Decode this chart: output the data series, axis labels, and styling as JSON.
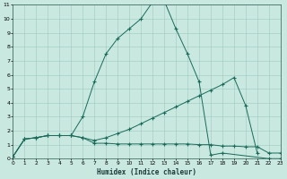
{
  "xlabel": "Humidex (Indice chaleur)",
  "bg_color": "#c8e8e0",
  "grid_color": "#a0c8c0",
  "line_color": "#1a6b5a",
  "line1_x": [
    0,
    1,
    2,
    3,
    4,
    5,
    6,
    7,
    8,
    9,
    10,
    11,
    12,
    13,
    14,
    15,
    16,
    17,
    18,
    22,
    23
  ],
  "line1_y": [
    0.15,
    1.4,
    1.5,
    1.65,
    1.65,
    1.65,
    3.0,
    5.5,
    7.5,
    8.6,
    9.3,
    10.0,
    11.2,
    11.3,
    9.3,
    7.5,
    5.5,
    0.25,
    0.4,
    0.0,
    0.0
  ],
  "line2_x": [
    0,
    1,
    2,
    3,
    4,
    5,
    6,
    7,
    8,
    9,
    10,
    11,
    12,
    13,
    14,
    15,
    16,
    17,
    18,
    19,
    20,
    21
  ],
  "line2_y": [
    0.15,
    1.4,
    1.5,
    1.65,
    1.65,
    1.65,
    1.5,
    1.3,
    1.5,
    1.8,
    2.1,
    2.5,
    2.9,
    3.3,
    3.7,
    4.1,
    4.5,
    4.9,
    5.3,
    5.8,
    3.8,
    0.4
  ],
  "line3_x": [
    0,
    1,
    2,
    3,
    4,
    5,
    6,
    7,
    8,
    9,
    10,
    11,
    12,
    13,
    14,
    15,
    16,
    17,
    18,
    19,
    20,
    21,
    22,
    23
  ],
  "line3_y": [
    0.15,
    1.4,
    1.5,
    1.65,
    1.65,
    1.65,
    1.5,
    1.1,
    1.1,
    1.05,
    1.05,
    1.05,
    1.05,
    1.05,
    1.05,
    1.05,
    1.0,
    1.0,
    0.9,
    0.9,
    0.85,
    0.85,
    0.4,
    0.4
  ]
}
